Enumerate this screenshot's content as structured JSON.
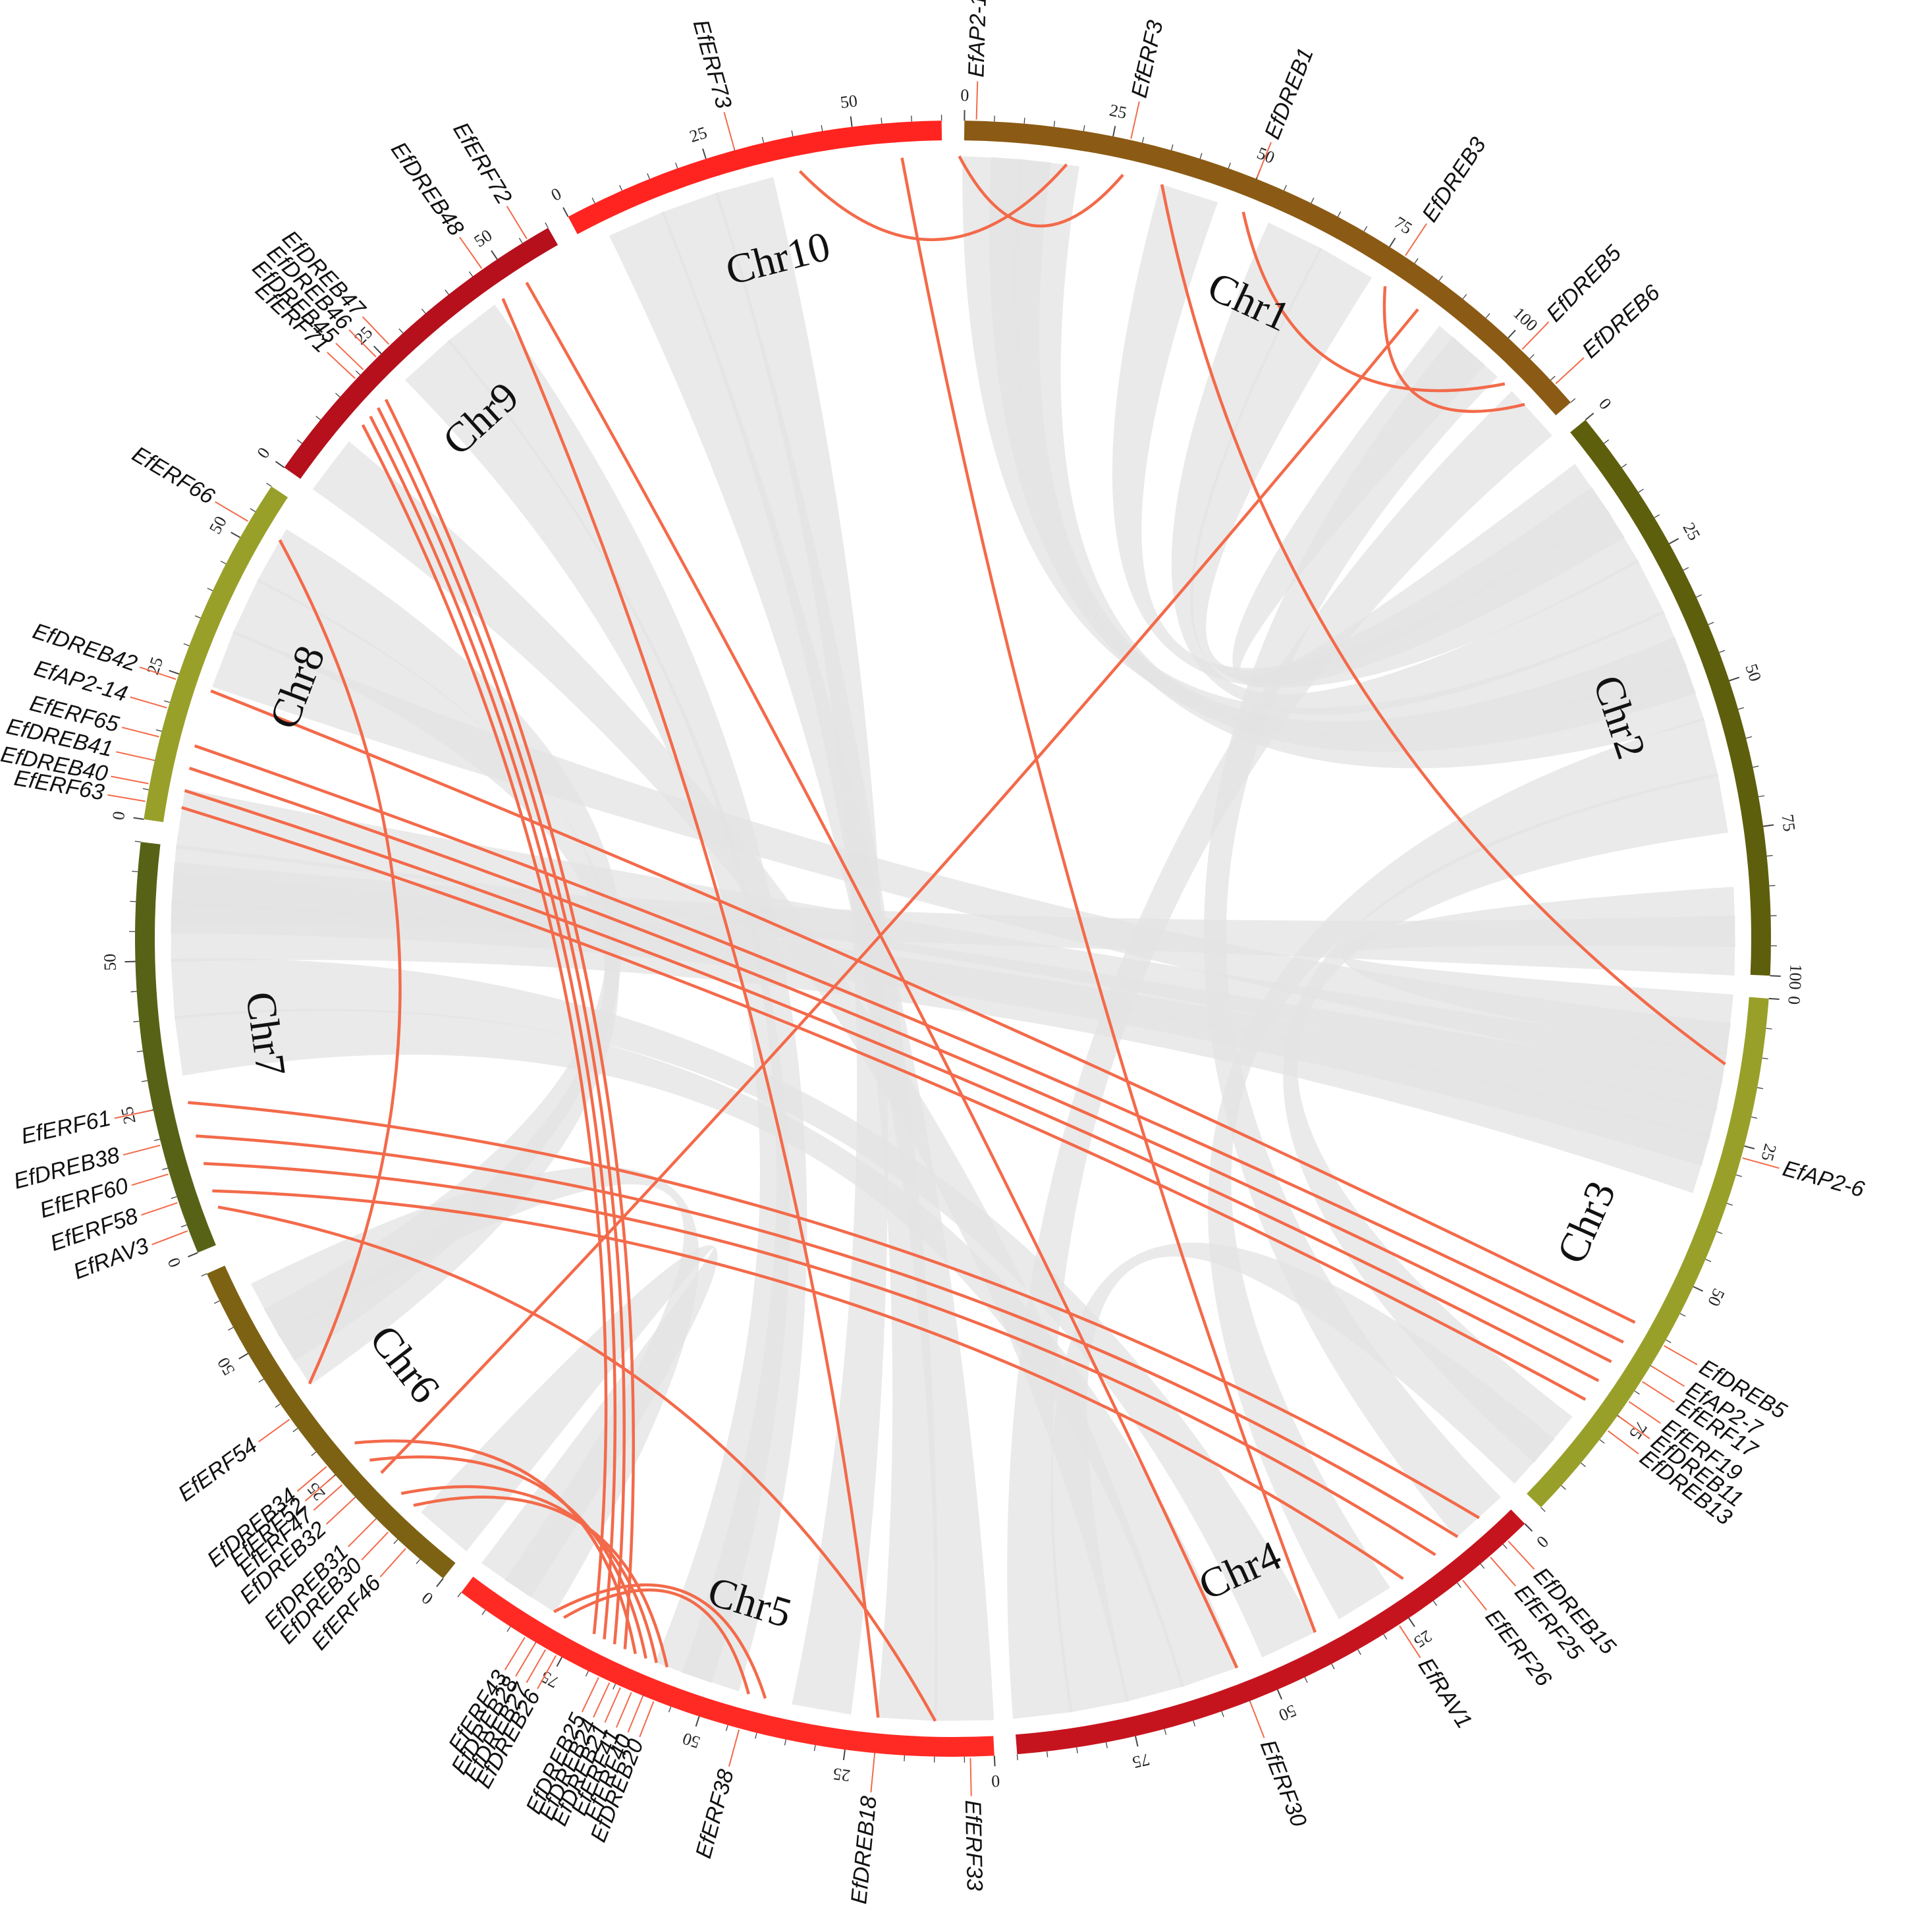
{
  "chromosomes": [
    {
      "name": "Chr1",
      "length": 115,
      "color": "#8b5a14"
    },
    {
      "name": "Chr2",
      "length": 100,
      "color": "#5e5f0c"
    },
    {
      "name": "Chr3",
      "length": 95,
      "color": "#98a02a"
    },
    {
      "name": "Chr4",
      "length": 95,
      "color": "#c6141e"
    },
    {
      "name": "Chr5",
      "length": 95,
      "color": "#ff2a24"
    },
    {
      "name": "Chr6",
      "length": 65,
      "color": "#7d6214"
    },
    {
      "name": "Chr7",
      "length": 70,
      "color": "#586216"
    },
    {
      "name": "Chr8",
      "length": 60,
      "color": "#98a02a"
    },
    {
      "name": "Chr9",
      "length": 60,
      "color": "#b5101c"
    },
    {
      "name": "Chr10",
      "length": 65,
      "color": "#ff2420"
    }
  ],
  "genes": [
    {
      "name": "EfAP2-1",
      "chr": "Chr1",
      "pos": 2
    },
    {
      "name": "EfERF3",
      "chr": "Chr1",
      "pos": 28
    },
    {
      "name": "EfDREB1",
      "chr": "Chr1",
      "pos": 50
    },
    {
      "name": "EfDREB3",
      "chr": "Chr1",
      "pos": 78
    },
    {
      "name": "EfDREB5",
      "chr": "Chr1",
      "pos": 103
    },
    {
      "name": "EfDREB6",
      "chr": "Chr1",
      "pos": 111
    },
    {
      "name": "EfAP2-6",
      "chr": "Chr3",
      "pos": 27
    },
    {
      "name": "EfDREB5",
      "chr": "Chr3",
      "pos": 61
    },
    {
      "name": "EfAP2-7",
      "chr": "Chr3",
      "pos": 65
    },
    {
      "name": "EfERF17",
      "chr": "Chr3",
      "pos": 68
    },
    {
      "name": "EfERF19",
      "chr": "Chr3",
      "pos": 72
    },
    {
      "name": "EfDREB11",
      "chr": "Chr3",
      "pos": 75
    },
    {
      "name": "EfDREB13",
      "chr": "Chr3",
      "pos": 78
    },
    {
      "name": "EfDREB15",
      "chr": "Chr4",
      "pos": 4
    },
    {
      "name": "EfERF25",
      "chr": "Chr4",
      "pos": 8
    },
    {
      "name": "EfERF26",
      "chr": "Chr4",
      "pos": 14
    },
    {
      "name": "EfRAV1",
      "chr": "Chr4",
      "pos": 27
    },
    {
      "name": "EfERF30",
      "chr": "Chr4",
      "pos": 55
    },
    {
      "name": "EfERF33",
      "chr": "Chr5",
      "pos": 4
    },
    {
      "name": "EfDREB18",
      "chr": "Chr5",
      "pos": 20
    },
    {
      "name": "EfERF38",
      "chr": "Chr5",
      "pos": 43
    },
    {
      "name": "EfDREB20",
      "chr": "Chr5",
      "pos": 58
    },
    {
      "name": "EfERF40",
      "chr": "Chr5",
      "pos": 60
    },
    {
      "name": "EfERF41",
      "chr": "Chr5",
      "pos": 62
    },
    {
      "name": "EfDREB21",
      "chr": "Chr5",
      "pos": 64
    },
    {
      "name": "EfDREB24",
      "chr": "Chr5",
      "pos": 66
    },
    {
      "name": "EfDREB25",
      "chr": "Chr5",
      "pos": 68
    },
    {
      "name": "EfDREB26",
      "chr": "Chr5",
      "pos": 76
    },
    {
      "name": "EfDREB27",
      "chr": "Chr5",
      "pos": 78
    },
    {
      "name": "EfDREB28",
      "chr": "Chr5",
      "pos": 80
    },
    {
      "name": "EfERF43",
      "chr": "Chr5",
      "pos": 82
    },
    {
      "name": "EfERF46",
      "chr": "Chr6",
      "pos": 8
    },
    {
      "name": "EfDREB30",
      "chr": "Chr6",
      "pos": 12
    },
    {
      "name": "EfDREB31",
      "chr": "Chr6",
      "pos": 15
    },
    {
      "name": "EfDREB32",
      "chr": "Chr6",
      "pos": 20
    },
    {
      "name": "EfERF47",
      "chr": "Chr6",
      "pos": 23
    },
    {
      "name": "EfERF52",
      "chr": "Chr6",
      "pos": 25
    },
    {
      "name": "EfDREB34",
      "chr": "Chr6",
      "pos": 27
    },
    {
      "name": "EfERF54",
      "chr": "Chr6",
      "pos": 37
    },
    {
      "name": "EfRAV3",
      "chr": "Chr7",
      "pos": 4
    },
    {
      "name": "EfERF58",
      "chr": "Chr7",
      "pos": 9
    },
    {
      "name": "EfERF60",
      "chr": "Chr7",
      "pos": 14
    },
    {
      "name": "EfDREB38",
      "chr": "Chr7",
      "pos": 19
    },
    {
      "name": "EfERF61",
      "chr": "Chr7",
      "pos": 25
    },
    {
      "name": "EfERF63",
      "chr": "Chr8",
      "pos": 3
    },
    {
      "name": "EfDREB40",
      "chr": "Chr8",
      "pos": 6
    },
    {
      "name": "EfDREB41",
      "chr": "Chr8",
      "pos": 10
    },
    {
      "name": "EfERF65",
      "chr": "Chr8",
      "pos": 14
    },
    {
      "name": "EfAP2-14",
      "chr": "Chr8",
      "pos": 19
    },
    {
      "name": "EfDREB42",
      "chr": "Chr8",
      "pos": 24
    },
    {
      "name": "EfERF66",
      "chr": "Chr8",
      "pos": 53
    },
    {
      "name": "EfERF71",
      "chr": "Chr9",
      "pos": 19
    },
    {
      "name": "EfDREB45",
      "chr": "Chr9",
      "pos": 21
    },
    {
      "name": "EfDREB46",
      "chr": "Chr9",
      "pos": 24
    },
    {
      "name": "EfDREB47",
      "chr": "Chr9",
      "pos": 27
    },
    {
      "name": "EfDREB48",
      "chr": "Chr9",
      "pos": 47
    },
    {
      "name": "EfERF72",
      "chr": "Chr9",
      "pos": 56
    },
    {
      "name": "EfERF73",
      "chr": "Chr10",
      "pos": 30
    }
  ],
  "gene_links": [
    {
      "a": [
        "Chr1",
        18
      ],
      "b": [
        "Chr10",
        40
      ]
    },
    {
      "a": [
        "Chr1",
        28
      ],
      "b": [
        "Chr10",
        68
      ]
    },
    {
      "a": [
        "Chr1",
        50
      ],
      "b": [
        "Chr1",
        105
      ]
    },
    {
      "a": [
        "Chr1",
        78
      ],
      "b": [
        "Chr1",
        110
      ]
    },
    {
      "a": [
        "Chr1",
        35
      ],
      "b": [
        "Chr3",
        12
      ]
    },
    {
      "a": [
        "Chr1",
        85
      ],
      "b": [
        "Chr6",
        20
      ]
    },
    {
      "a": [
        "Chr10",
        58
      ],
      "b": [
        "Chr4",
        40
      ]
    },
    {
      "a": [
        "Chr9",
        52
      ],
      "b": [
        "Chr4",
        55
      ]
    },
    {
      "a": [
        "Chr9",
        47
      ],
      "b": [
        "Chr5",
        20
      ]
    },
    {
      "a": [
        "Chr9",
        20
      ],
      "b": [
        "Chr5",
        66
      ]
    },
    {
      "a": [
        "Chr9",
        18
      ],
      "b": [
        "Chr5",
        68
      ]
    },
    {
      "a": [
        "Chr9",
        16
      ],
      "b": [
        "Chr5",
        70
      ]
    },
    {
      "a": [
        "Chr9",
        14
      ],
      "b": [
        "Chr5",
        72
      ]
    },
    {
      "a": [
        "Chr8",
        53
      ],
      "b": [
        "Chr6",
        40
      ]
    },
    {
      "a": [
        "Chr8",
        24
      ],
      "b": [
        "Chr3",
        60
      ]
    },
    {
      "a": [
        "Chr8",
        14
      ],
      "b": [
        "Chr3",
        64
      ]
    },
    {
      "a": [
        "Chr8",
        10
      ],
      "b": [
        "Chr3",
        68
      ]
    },
    {
      "a": [
        "Chr8",
        6
      ],
      "b": [
        "Chr3",
        72
      ]
    },
    {
      "a": [
        "Chr8",
        3
      ],
      "b": [
        "Chr3",
        76
      ]
    },
    {
      "a": [
        "Chr7",
        25
      ],
      "b": [
        "Chr4",
        5
      ]
    },
    {
      "a": [
        "Chr7",
        19
      ],
      "b": [
        "Chr4",
        10
      ]
    },
    {
      "a": [
        "Chr7",
        14
      ],
      "b": [
        "Chr4",
        15
      ]
    },
    {
      "a": [
        "Chr7",
        9
      ],
      "b": [
        "Chr4",
        22
      ]
    },
    {
      "a": [
        "Chr7",
        6
      ],
      "b": [
        "Chr5",
        10
      ]
    },
    {
      "a": [
        "Chr6",
        12
      ],
      "b": [
        "Chr5",
        58
      ]
    },
    {
      "a": [
        "Chr6",
        15
      ],
      "b": [
        "Chr5",
        60
      ]
    },
    {
      "a": [
        "Chr6",
        23
      ],
      "b": [
        "Chr5",
        62
      ]
    },
    {
      "a": [
        "Chr6",
        27
      ],
      "b": [
        "Chr5",
        64
      ]
    },
    {
      "a": [
        "Chr5",
        78
      ],
      "b": [
        "Chr5",
        43
      ]
    },
    {
      "a": [
        "Chr5",
        80
      ],
      "b": [
        "Chr5",
        40
      ]
    }
  ],
  "background_links": [
    {
      "a": [
        "Chr1",
        5
      ],
      "b": [
        "Chr2",
        40
      ]
    },
    {
      "a": [
        "Chr1",
        10
      ],
      "b": [
        "Chr2",
        45
      ]
    },
    {
      "a": [
        "Chr1",
        15
      ],
      "b": [
        "Chr2",
        50
      ]
    },
    {
      "a": [
        "Chr1",
        40
      ],
      "b": [
        "Chr2",
        20
      ]
    },
    {
      "a": [
        "Chr1",
        60
      ],
      "b": [
        "Chr2",
        30
      ]
    },
    {
      "a": [
        "Chr1",
        70
      ],
      "b": [
        "Chr2",
        15
      ]
    },
    {
      "a": [
        "Chr1",
        95
      ],
      "b": [
        "Chr2",
        10
      ]
    },
    {
      "a": [
        "Chr1",
        98
      ],
      "b": [
        "Chr4",
        5
      ]
    },
    {
      "a": [
        "Chr2",
        60
      ],
      "b": [
        "Chr4",
        30
      ]
    },
    {
      "a": [
        "Chr2",
        70
      ],
      "b": [
        "Chr3",
        85
      ]
    },
    {
      "a": [
        "Chr2",
        90
      ],
      "b": [
        "Chr3",
        5
      ]
    },
    {
      "a": [
        "Chr2",
        95
      ],
      "b": [
        "Chr7",
        62
      ]
    },
    {
      "a": [
        "Chr10",
        10
      ],
      "b": [
        "Chr5",
        5
      ]
    },
    {
      "a": [
        "Chr10",
        20
      ],
      "b": [
        "Chr5",
        15
      ]
    },
    {
      "a": [
        "Chr10",
        30
      ],
      "b": [
        "Chr5",
        30
      ]
    },
    {
      "a": [
        "Chr9",
        40
      ],
      "b": [
        "Chr5",
        50
      ]
    },
    {
      "a": [
        "Chr9",
        30
      ],
      "b": [
        "Chr5",
        55
      ]
    },
    {
      "a": [
        "Chr9",
        5
      ],
      "b": [
        "Chr4",
        70
      ]
    },
    {
      "a": [
        "Chr8",
        50
      ],
      "b": [
        "Chr6",
        50
      ]
    },
    {
      "a": [
        "Chr8",
        40
      ],
      "b": [
        "Chr6",
        45
      ]
    },
    {
      "a": [
        "Chr8",
        30
      ],
      "b": [
        "Chr3",
        10
      ]
    },
    {
      "a": [
        "Chr8",
        1
      ],
      "b": [
        "Chr3",
        15
      ]
    },
    {
      "a": [
        "Chr7",
        65
      ],
      "b": [
        "Chr3",
        20
      ]
    },
    {
      "a": [
        "Chr7",
        60
      ],
      "b": [
        "Chr3",
        25
      ]
    },
    {
      "a": [
        "Chr7",
        55
      ],
      "b": [
        "Chr3",
        30
      ]
    },
    {
      "a": [
        "Chr7",
        45
      ],
      "b": [
        "Chr4",
        45
      ]
    },
    {
      "a": [
        "Chr7",
        35
      ],
      "b": [
        "Chr4",
        60
      ]
    },
    {
      "a": [
        "Chr6",
        55
      ],
      "b": [
        "Chr5",
        85
      ]
    },
    {
      "a": [
        "Chr6",
        5
      ],
      "b": [
        "Chr5",
        90
      ]
    },
    {
      "a": [
        "Chr4",
        80
      ],
      "b": [
        "Chr3",
        90
      ]
    },
    {
      "a": [
        "Chr4",
        90
      ],
      "b": [
        "Chr1",
        112
      ]
    }
  ],
  "link_colors": {
    "gene": "#f36a4a",
    "background": "#e3e3e3"
  }
}
